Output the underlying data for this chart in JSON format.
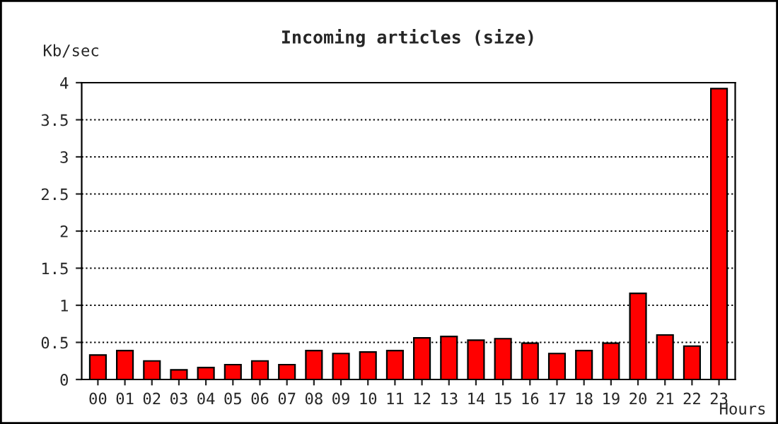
{
  "chart_data": {
    "type": "bar",
    "title": "Incoming articles (size)",
    "ylabel": "Kb/sec",
    "xlabel": "Hours",
    "categories": [
      "00",
      "01",
      "02",
      "03",
      "04",
      "05",
      "06",
      "07",
      "08",
      "09",
      "10",
      "11",
      "12",
      "13",
      "14",
      "15",
      "16",
      "17",
      "18",
      "19",
      "20",
      "21",
      "22",
      "23"
    ],
    "values": [
      0.33,
      0.39,
      0.25,
      0.13,
      0.16,
      0.2,
      0.25,
      0.2,
      0.39,
      0.35,
      0.37,
      0.39,
      0.56,
      0.58,
      0.53,
      0.55,
      0.49,
      0.35,
      0.39,
      0.49,
      1.16,
      0.6,
      0.45,
      3.92
    ],
    "color": "#ff0000",
    "ylim": [
      0,
      4
    ],
    "yticks": [
      0,
      0.5,
      1,
      1.5,
      2,
      2.5,
      3,
      3.5,
      4
    ],
    "grid": "y",
    "line_style": "dotted"
  }
}
